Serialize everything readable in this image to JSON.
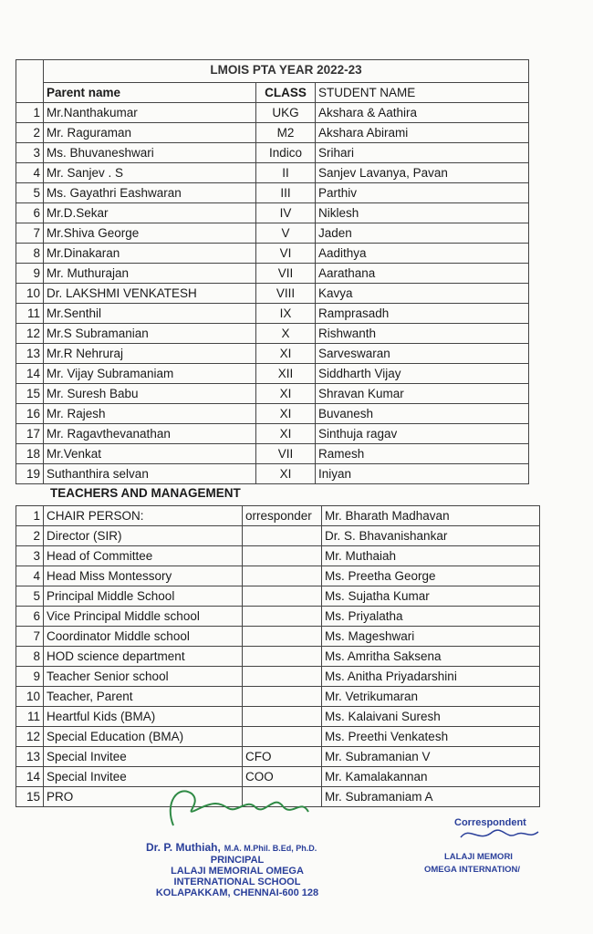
{
  "header": {
    "title": "LMOIS PTA  YEAR 2022-23"
  },
  "parents": {
    "columns": [
      "Parent name",
      "CLASS",
      "STUDENT NAME"
    ],
    "rows": [
      [
        1,
        "Mr.Nanthakumar",
        "UKG",
        "Akshara & Aathira"
      ],
      [
        2,
        "Mr. Raguraman",
        "M2",
        "Akshara Abirami"
      ],
      [
        3,
        "Ms. Bhuvaneshwari",
        "Indico",
        "Srihari"
      ],
      [
        4,
        "Mr. Sanjev . S",
        "II",
        "Sanjev Lavanya, Pavan"
      ],
      [
        5,
        "Ms. Gayathri Eashwaran",
        "III",
        "Parthiv"
      ],
      [
        6,
        "Mr.D.Sekar",
        "IV",
        "Niklesh"
      ],
      [
        7,
        "Mr.Shiva George",
        "V",
        "Jaden"
      ],
      [
        8,
        "Mr.Dinakaran",
        "VI",
        "Aadithya"
      ],
      [
        9,
        "Mr. Muthurajan",
        "VII",
        "Aarathana"
      ],
      [
        10,
        "Dr. LAKSHMI VENKATESH",
        "VIII",
        "Kavya"
      ],
      [
        11,
        "Mr.Senthil",
        "IX",
        "Ramprasadh"
      ],
      [
        12,
        "Mr.S Subramanian",
        "X",
        "Rishwanth"
      ],
      [
        13,
        "Mr.R Nehruraj",
        "XI",
        "Sarveswaran"
      ],
      [
        14,
        "Mr. Vijay Subramaniam",
        "XII",
        "Siddharth Vijay"
      ],
      [
        15,
        "Mr. Suresh Babu",
        "XI",
        "Shravan Kumar"
      ],
      [
        16,
        "Mr. Rajesh",
        "XI",
        "Buvanesh"
      ],
      [
        17,
        "Mr. Ragavthevanathan",
        "XI",
        "Sinthuja ragav"
      ],
      [
        18,
        "Mr.Venkat",
        "VII",
        "Ramesh"
      ],
      [
        19,
        "Suthanthira selvan",
        "XI",
        "Iniyan"
      ]
    ]
  },
  "management": {
    "heading": "TEACHERS AND MANAGEMENT",
    "rows": [
      [
        1,
        "CHAIR PERSON:",
        "orresponder",
        "Mr.  Bharath Madhavan"
      ],
      [
        2,
        "Director (SIR)",
        null,
        "Dr. S. Bhavanishankar"
      ],
      [
        3,
        "Head of Committee",
        null,
        "Mr. Muthaiah"
      ],
      [
        4,
        "Head Miss Montessory",
        null,
        "Ms. Preetha George"
      ],
      [
        5,
        "Principal Middle School",
        null,
        "Ms. Sujatha Kumar"
      ],
      [
        6,
        "Vice Principal Middle school",
        null,
        "Ms. Priyalatha"
      ],
      [
        7,
        "Coordinator Middle school",
        null,
        "Ms. Mageshwari"
      ],
      [
        8,
        "HOD science department",
        null,
        "Ms.  Amritha Saksena"
      ],
      [
        9,
        "Teacher Senior school",
        null,
        "Ms. Anitha Priyadarshini"
      ],
      [
        10,
        "Teacher, Parent",
        null,
        "Mr. Vetrikumaran"
      ],
      [
        11,
        "Heartful Kids (BMA)",
        null,
        "Ms. Kalaivani Suresh"
      ],
      [
        12,
        "Special Education (BMA)",
        null,
        "Ms. Preethi Venkatesh"
      ],
      [
        13,
        "Special Invitee",
        "CFO",
        "Mr. Subramanian V"
      ],
      [
        14,
        "Special Invitee",
        "COO",
        "Mr. Kamalakannan"
      ],
      [
        15,
        "PRO",
        null,
        "Mr. Subramaniam A"
      ]
    ]
  },
  "signature": {
    "name": "Dr. P. Muthiah,",
    "degrees": "M.A. M.Phil. B.Ed, Ph.D.",
    "lines": [
      "PRINCIPAL",
      "LALAJI MEMORIAL OMEGA",
      "INTERNATIONAL SCHOOL",
      "KOLAPAKKAM, CHENNAI-600 128"
    ]
  },
  "stamp": {
    "lines": [
      "Correspondent",
      "LALAJI MEMORI",
      "OMEGA INTERNATION/"
    ]
  }
}
